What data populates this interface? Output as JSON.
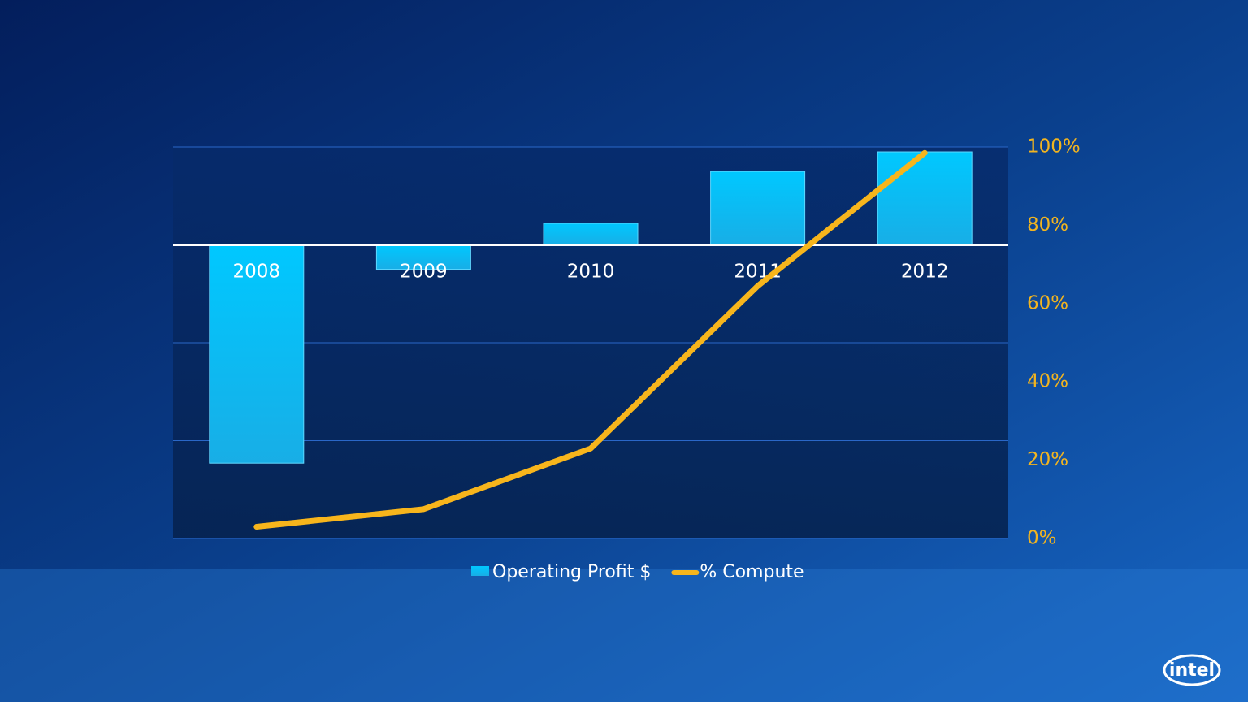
{
  "chart_data": {
    "type": "bar-line",
    "categories": [
      "2008",
      "2009",
      "2010",
      "2011",
      "2012"
    ],
    "series": [
      {
        "name": "Operating Profit $",
        "type": "bar",
        "color": "#12c3f5",
        "values": [
          -2.23,
          -0.25,
          0.22,
          0.75,
          0.95
        ]
      },
      {
        "name": "% Compute",
        "type": "line",
        "color": "#f7b51c",
        "axis": "y2",
        "values": [
          3,
          7.5,
          23,
          64.5,
          98.5
        ]
      }
    ],
    "ylim": [
      -3,
      1
    ],
    "yticks": [
      -3,
      -2,
      -1,
      0,
      1
    ],
    "y2lim": [
      0,
      100
    ],
    "y2ticks": [
      {
        "value": 0,
        "label": "0%"
      },
      {
        "value": 20,
        "label": "20%"
      },
      {
        "value": 40,
        "label": "40%"
      },
      {
        "value": 60,
        "label": "60%"
      },
      {
        "value": 80,
        "label": "80%"
      },
      {
        "value": 100,
        "label": "100%"
      }
    ],
    "grid": true,
    "legend": "bottom"
  },
  "logo": "intel"
}
